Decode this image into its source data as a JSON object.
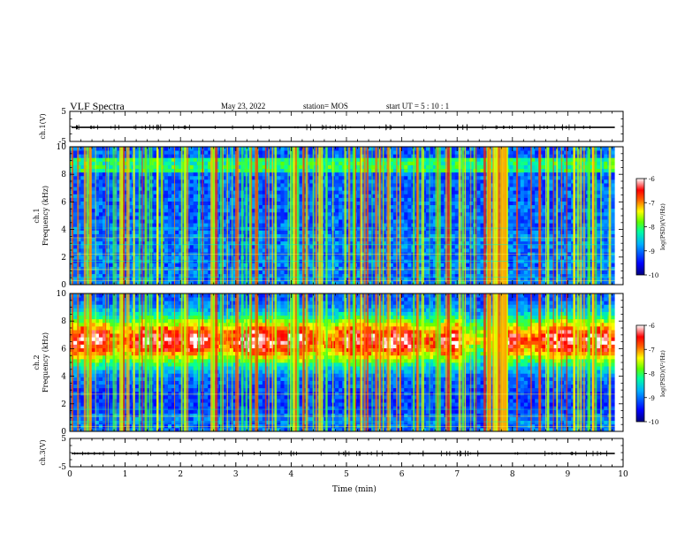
{
  "header": {
    "title": "VLF Spectra",
    "date": "May 23, 2022",
    "station": "station= MOS",
    "start": "start  UT =   5 : 10 : 1"
  },
  "chart_data": {
    "type": "heatmap",
    "xlabel": "Time (min)",
    "xlim": [
      0,
      10
    ],
    "x_ticks": [
      "0",
      "1",
      "2",
      "3",
      "4",
      "5",
      "6",
      "7",
      "8",
      "9",
      "10"
    ],
    "panels": [
      {
        "name": "ch1-waveform",
        "ylabel": "ch.1(V)",
        "ylim": [
          -5,
          5
        ],
        "y_ticks": [
          "5",
          "-5"
        ],
        "trace_level": -0.3
      },
      {
        "name": "ch1-spectrogram",
        "ylabel": "ch.1\nFrequency (kHz)",
        "ylim": [
          0,
          10
        ],
        "y_ticks": [
          "0",
          "2",
          "4",
          "6",
          "8",
          "10"
        ],
        "colorbar": {
          "label": "log(PSD)(V²/Hz)",
          "range": [
            -10,
            -6
          ],
          "ticks": [
            "-6",
            "-7",
            "-8",
            "-9",
            "-10"
          ]
        }
      },
      {
        "name": "ch2-spectrogram",
        "ylabel": "ch.2\nFrequency (kHz)",
        "ylim": [
          0,
          10
        ],
        "y_ticks": [
          "0",
          "2",
          "4",
          "6",
          "8",
          "10"
        ],
        "colorbar": {
          "label": "log(PSD)(V²/Hz)",
          "range": [
            -10,
            -6
          ],
          "ticks": [
            "-6",
            "-7",
            "-8",
            "-9",
            "-10"
          ]
        }
      },
      {
        "name": "ch3-waveform",
        "ylabel": "ch.3(V)",
        "ylim": [
          -5,
          5
        ],
        "y_ticks": [
          "5",
          "-5"
        ],
        "trace_level": -0.3
      }
    ],
    "data_end_min": 9.85,
    "colormap": [
      "#00007f",
      "#0000ff",
      "#0080ff",
      "#00ffff",
      "#80ff80",
      "#ffff00",
      "#ff8000",
      "#ff0000",
      "#ffffff"
    ]
  }
}
